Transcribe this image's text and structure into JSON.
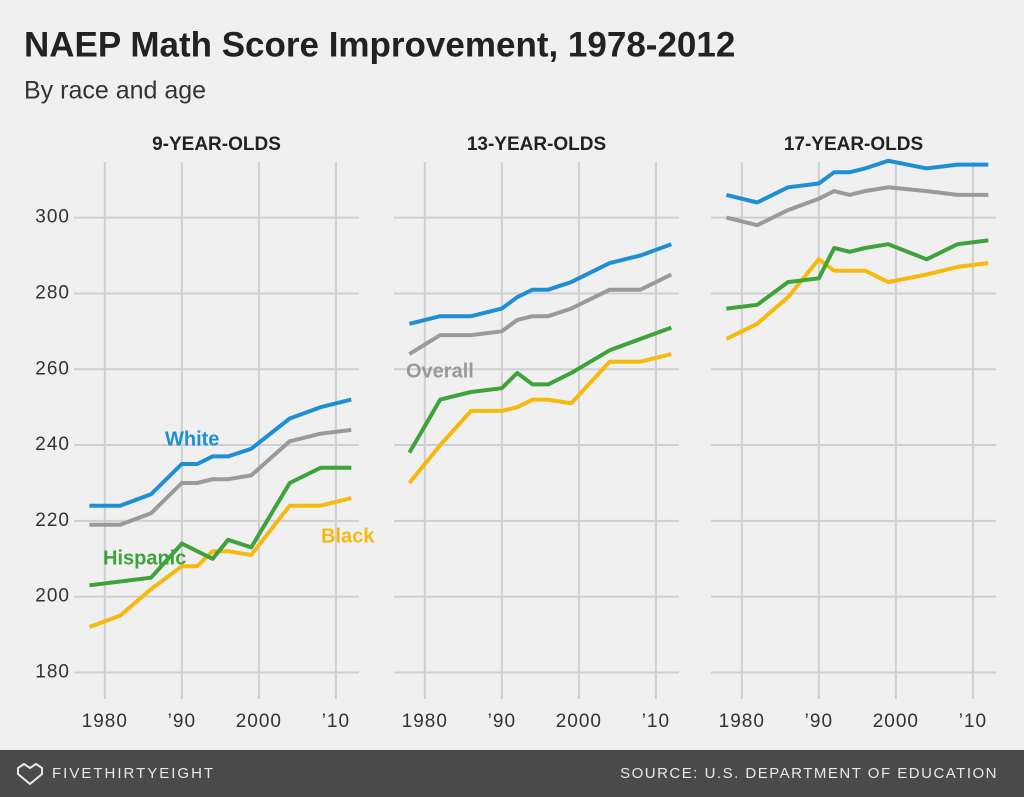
{
  "title": "NAEP Math Score Improvement, 1978-2012",
  "subtitle": "By race and age",
  "footer": {
    "brand": "FIVETHIRTYEIGHT",
    "source": "SOURCE: U.S. DEPARTMENT OF EDUCATION"
  },
  "chart_data": [
    {
      "type": "line",
      "title": "9-YEAR-OLDS",
      "x": [
        1978,
        1982,
        1986,
        1990,
        1992,
        1994,
        1996,
        1999,
        2004,
        2008,
        2012
      ],
      "xlim": [
        1976,
        2013
      ],
      "ylim": [
        173,
        316
      ],
      "xticks": [
        1980,
        {
          "value": 1990,
          "label": "’90"
        },
        2000,
        {
          "value": 2010,
          "label": "’10"
        }
      ],
      "yticks": [
        180,
        200,
        220,
        240,
        260,
        280,
        300
      ],
      "grid": true,
      "series": [
        {
          "name": "White",
          "color": "#1f8fd5",
          "values": [
            224,
            224,
            227,
            235,
            235,
            237,
            237,
            239,
            247,
            250,
            252
          ]
        },
        {
          "color": "#9a9a9a",
          "values": [
            219,
            219,
            222,
            230,
            230,
            231,
            231,
            232,
            241,
            243,
            244
          ]
        },
        {
          "name": "Black",
          "color": "#f5b90f",
          "values": [
            192,
            195,
            202,
            208,
            208,
            212,
            212,
            211,
            224,
            224,
            226
          ]
        },
        {
          "name": "Hispanic",
          "color": "#3da33a",
          "values": [
            203,
            204,
            205,
            214,
            212,
            210,
            215,
            213,
            230,
            234,
            234
          ]
        }
      ]
    },
    {
      "type": "line",
      "title": "13-YEAR-OLDS",
      "x": [
        1978,
        1982,
        1986,
        1990,
        1992,
        1994,
        1996,
        1999,
        2004,
        2008,
        2012
      ],
      "xlim": [
        1976,
        2013
      ],
      "ylim": [
        173,
        316
      ],
      "xticks": [
        1980,
        {
          "value": 1990,
          "label": "’90"
        },
        2000,
        {
          "value": 2010,
          "label": "’10"
        }
      ],
      "yticks": [
        180,
        200,
        220,
        240,
        260,
        280,
        300
      ],
      "grid": true,
      "series": [
        {
          "color": "#1f8fd5",
          "values": [
            272,
            274,
            274,
            276,
            279,
            281,
            281,
            283,
            288,
            290,
            293
          ]
        },
        {
          "name": "Overall",
          "color": "#9a9a9a",
          "values": [
            264,
            269,
            269,
            270,
            273,
            274,
            274,
            276,
            281,
            281,
            285
          ]
        },
        {
          "color": "#f5b90f",
          "values": [
            230,
            240,
            249,
            249,
            250,
            252,
            252,
            251,
            262,
            262,
            264
          ]
        },
        {
          "color": "#3da33a",
          "values": [
            238,
            252,
            254,
            255,
            259,
            256,
            256,
            259,
            265,
            268,
            271
          ]
        }
      ]
    },
    {
      "type": "line",
      "title": "17-YEAR-OLDS",
      "x": [
        1978,
        1982,
        1986,
        1990,
        1992,
        1994,
        1996,
        1999,
        2004,
        2008,
        2012
      ],
      "xlim": [
        1976,
        2013
      ],
      "ylim": [
        173,
        316
      ],
      "xticks": [
        1980,
        {
          "value": 1990,
          "label": "’90"
        },
        2000,
        {
          "value": 2010,
          "label": "’10"
        }
      ],
      "yticks": [
        180,
        200,
        220,
        240,
        260,
        280,
        300
      ],
      "grid": true,
      "series": [
        {
          "color": "#1f8fd5",
          "values": [
            306,
            304,
            308,
            309,
            312,
            312,
            313,
            315,
            313,
            314,
            314
          ]
        },
        {
          "color": "#9a9a9a",
          "values": [
            300,
            298,
            302,
            305,
            307,
            306,
            307,
            308,
            307,
            306,
            306
          ]
        },
        {
          "color": "#f5b90f",
          "values": [
            268,
            272,
            279,
            289,
            286,
            286,
            286,
            283,
            285,
            287,
            288
          ]
        },
        {
          "color": "#3da33a",
          "values": [
            276,
            277,
            283,
            284,
            292,
            291,
            292,
            293,
            289,
            293,
            294
          ]
        }
      ]
    }
  ]
}
